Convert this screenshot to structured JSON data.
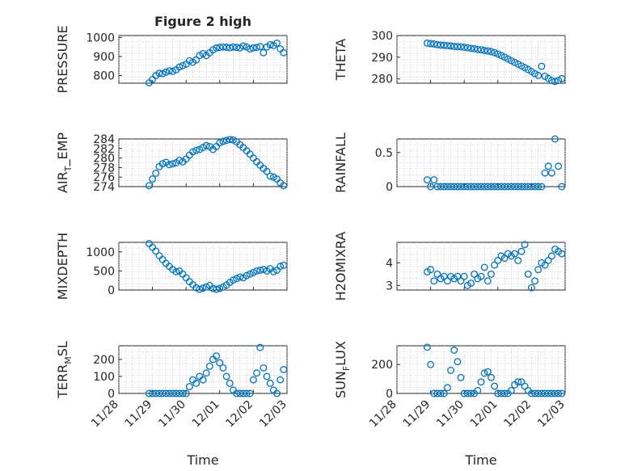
{
  "figure": {
    "title": "Figure 2 high",
    "xlabel": "Time",
    "x_ticks": [
      "11/28",
      "11/29",
      "11/30",
      "12/01",
      "12/02",
      "12/03"
    ]
  },
  "chart_data": [
    {
      "type": "scatter",
      "ylabel": "PRESSURE",
      "ylim": [
        760,
        1010
      ],
      "yticks": [
        800,
        900,
        1000
      ],
      "x": [
        0.9,
        1.0,
        1.1,
        1.2,
        1.3,
        1.4,
        1.5,
        1.6,
        1.7,
        1.8,
        1.9,
        2.0,
        2.1,
        2.2,
        2.3,
        2.4,
        2.5,
        2.6,
        2.7,
        2.8,
        2.9,
        3.0,
        3.1,
        3.2,
        3.3,
        3.4,
        3.5,
        3.6,
        3.7,
        3.8,
        3.9,
        4.0,
        4.1,
        4.2,
        4.3,
        4.4,
        4.5,
        4.6,
        4.7,
        4.8,
        4.9
      ],
      "y": [
        762,
        780,
        800,
        812,
        810,
        818,
        825,
        822,
        830,
        845,
        852,
        860,
        878,
        870,
        882,
        905,
        915,
        905,
        920,
        935,
        945,
        948,
        950,
        948,
        946,
        950,
        948,
        945,
        955,
        950,
        940,
        945,
        948,
        952,
        920,
        950,
        962,
        958,
        970,
        940,
        920
      ]
    },
    {
      "type": "scatter",
      "ylabel": "THETA",
      "ylim": [
        278,
        300
      ],
      "yticks": [
        280,
        290,
        300
      ],
      "x": [
        0.9,
        1.0,
        1.1,
        1.2,
        1.3,
        1.4,
        1.5,
        1.6,
        1.7,
        1.8,
        1.9,
        2.0,
        2.1,
        2.2,
        2.3,
        2.4,
        2.5,
        2.6,
        2.7,
        2.8,
        2.9,
        3.0,
        3.1,
        3.2,
        3.3,
        3.4,
        3.5,
        3.6,
        3.7,
        3.8,
        3.9,
        4.0,
        4.1,
        4.2,
        4.3,
        4.4,
        4.5,
        4.6,
        4.7,
        4.8,
        4.9
      ],
      "y": [
        296.5,
        296.3,
        296.1,
        295.8,
        295.6,
        295.5,
        295.3,
        295.2,
        295,
        294.9,
        294.8,
        294.6,
        294.4,
        294.1,
        293.9,
        293.6,
        293.4,
        293.1,
        292.9,
        292.6,
        292.1,
        291.5,
        290.8,
        290,
        289.2,
        288.4,
        287.6,
        286.8,
        286,
        285.2,
        284.3,
        283.4,
        282.4,
        281.6,
        285.8,
        281.2,
        280.2,
        279.2,
        278.8,
        279.3,
        280.1
      ]
    },
    {
      "type": "scatter",
      "ylabel": "AIR",
      "ylabel_sub": "T",
      "ylabel_tail": "_EMP",
      "ylim": [
        274,
        284
      ],
      "yticks": [
        274,
        276,
        278,
        280,
        282,
        284
      ],
      "x": [
        0.9,
        1.0,
        1.1,
        1.2,
        1.3,
        1.4,
        1.5,
        1.6,
        1.7,
        1.8,
        1.9,
        2.0,
        2.1,
        2.2,
        2.3,
        2.4,
        2.5,
        2.6,
        2.7,
        2.8,
        2.9,
        3.0,
        3.1,
        3.2,
        3.3,
        3.4,
        3.5,
        3.6,
        3.7,
        3.8,
        3.9,
        4.0,
        4.1,
        4.2,
        4.3,
        4.4,
        4.5,
        4.6,
        4.7,
        4.8,
        4.9
      ],
      "y": [
        274.2,
        275.6,
        276.8,
        278.2,
        278.8,
        279.1,
        278.6,
        278.8,
        279.0,
        279.5,
        279.2,
        279.8,
        280.6,
        281.3,
        281.6,
        281.8,
        282.2,
        282.6,
        282.4,
        281.8,
        282.4,
        283.2,
        283.5,
        283.7,
        283.9,
        283.8,
        283.4,
        282.8,
        282.2,
        281.5,
        280.8,
        280.0,
        279.2,
        278.5,
        277.8,
        277.2,
        276.2,
        276.0,
        275.6,
        274.8,
        274.2
      ]
    },
    {
      "type": "scatter",
      "ylabel": "RAINFALL",
      "ylim": [
        0,
        0.7
      ],
      "yticks": [
        0,
        0.5
      ],
      "x": [
        0.9,
        1.0,
        1.1,
        1.2,
        1.3,
        1.4,
        1.5,
        1.6,
        1.7,
        1.8,
        1.9,
        2.0,
        2.1,
        2.2,
        2.3,
        2.4,
        2.5,
        2.6,
        2.7,
        2.8,
        2.9,
        3.0,
        3.1,
        3.2,
        3.3,
        3.4,
        3.5,
        3.6,
        3.7,
        3.8,
        3.9,
        4.0,
        4.1,
        4.2,
        4.3,
        4.4,
        4.5,
        4.6,
        4.7,
        4.8,
        4.9
      ],
      "y": [
        0.1,
        0,
        0.1,
        0,
        0,
        0,
        0,
        0,
        0,
        0,
        0,
        0,
        0,
        0,
        0,
        0,
        0,
        0,
        0,
        0,
        0,
        0,
        0,
        0,
        0,
        0,
        0,
        0,
        0,
        0,
        0,
        0,
        0,
        0,
        0,
        0.2,
        0.3,
        0.2,
        0.7,
        0.3,
        0
      ]
    },
    {
      "type": "scatter",
      "ylabel": "MIXDEPTH",
      "ylim": [
        0,
        1250
      ],
      "yticks": [
        0,
        500,
        1000
      ],
      "x": [
        0.9,
        1.0,
        1.1,
        1.2,
        1.3,
        1.4,
        1.5,
        1.6,
        1.7,
        1.8,
        1.9,
        2.0,
        2.1,
        2.2,
        2.3,
        2.4,
        2.5,
        2.6,
        2.7,
        2.8,
        2.9,
        3.0,
        3.1,
        3.2,
        3.3,
        3.4,
        3.5,
        3.6,
        3.7,
        3.8,
        3.9,
        4.0,
        4.1,
        4.2,
        4.3,
        4.4,
        4.5,
        4.6,
        4.7,
        4.8,
        4.9
      ],
      "y": [
        1220,
        1120,
        1020,
        900,
        800,
        700,
        620,
        540,
        480,
        500,
        420,
        320,
        220,
        140,
        60,
        20,
        50,
        80,
        120,
        40,
        20,
        40,
        80,
        130,
        200,
        260,
        300,
        340,
        320,
        380,
        420,
        460,
        500,
        520,
        540,
        500,
        560,
        480,
        520,
        620,
        650
      ]
    },
    {
      "type": "scatter",
      "ylabel": "H2OMIXRA",
      "ylim": [
        2.8,
        4.9
      ],
      "yticks": [
        3,
        4
      ],
      "x": [
        0.9,
        1.0,
        1.1,
        1.2,
        1.3,
        1.4,
        1.5,
        1.6,
        1.7,
        1.8,
        1.9,
        2.0,
        2.1,
        2.2,
        2.3,
        2.4,
        2.5,
        2.6,
        2.7,
        2.8,
        2.9,
        3.0,
        3.1,
        3.2,
        3.3,
        3.4,
        3.5,
        3.6,
        3.7,
        3.8,
        3.9,
        4.0,
        4.1,
        4.2,
        4.3,
        4.4,
        4.5,
        4.6,
        4.7,
        4.8,
        4.9
      ],
      "y": [
        3.6,
        3.7,
        3.2,
        3.5,
        3.3,
        3.4,
        3.2,
        3.4,
        3.3,
        3.4,
        3.2,
        3.4,
        3.0,
        3.1,
        3.5,
        3.3,
        3.4,
        3.8,
        3.2,
        3.5,
        3.9,
        4.1,
        4.3,
        4.2,
        4.4,
        4.3,
        4.4,
        4.1,
        4.5,
        4.8,
        3.5,
        2.9,
        3.2,
        3.7,
        4.0,
        3.9,
        4.1,
        4.3,
        4.6,
        4.5,
        4.4
      ]
    },
    {
      "type": "scatter",
      "ylabel": "TERR",
      "ylabel_sub": "M",
      "ylabel_tail": "SL",
      "ylim": [
        0,
        280
      ],
      "yticks": [
        0,
        100,
        200
      ],
      "x": [
        0.9,
        1.0,
        1.1,
        1.2,
        1.3,
        1.4,
        1.5,
        1.6,
        1.7,
        1.8,
        1.9,
        2.0,
        2.1,
        2.2,
        2.3,
        2.4,
        2.5,
        2.6,
        2.7,
        2.8,
        2.9,
        3.0,
        3.1,
        3.2,
        3.3,
        3.4,
        3.5,
        3.6,
        3.7,
        3.8,
        3.9,
        4.0,
        4.1,
        4.2,
        4.3,
        4.4,
        4.5,
        4.6,
        4.7,
        4.8,
        4.9
      ],
      "y": [
        0,
        0,
        0,
        0,
        0,
        0,
        0,
        0,
        0,
        0,
        0,
        0,
        40,
        80,
        60,
        100,
        80,
        120,
        160,
        200,
        220,
        180,
        150,
        100,
        60,
        20,
        0,
        0,
        0,
        0,
        0,
        80,
        120,
        270,
        150,
        100,
        60,
        20,
        0,
        80,
        140
      ]
    },
    {
      "type": "scatter",
      "ylabel": "SUN",
      "ylabel_sub": "F",
      "ylabel_tail": "LUX",
      "ylim": [
        0,
        330
      ],
      "yticks": [
        0,
        200
      ],
      "x": [
        0.9,
        1.0,
        1.1,
        1.2,
        1.3,
        1.4,
        1.5,
        1.6,
        1.7,
        1.8,
        1.9,
        2.0,
        2.1,
        2.2,
        2.3,
        2.4,
        2.5,
        2.6,
        2.7,
        2.8,
        2.9,
        3.0,
        3.1,
        3.2,
        3.3,
        3.4,
        3.5,
        3.6,
        3.7,
        3.8,
        3.9,
        4.0,
        4.1,
        4.2,
        4.3,
        4.4,
        4.5,
        4.6,
        4.7,
        4.8,
        4.9
      ],
      "y": [
        320,
        200,
        0,
        0,
        0,
        0,
        40,
        160,
        300,
        220,
        110,
        0,
        0,
        0,
        0,
        20,
        80,
        140,
        150,
        110,
        50,
        0,
        0,
        0,
        0,
        20,
        60,
        80,
        80,
        50,
        20,
        0,
        0,
        0,
        0,
        0,
        0,
        0,
        0,
        0,
        0
      ]
    }
  ]
}
